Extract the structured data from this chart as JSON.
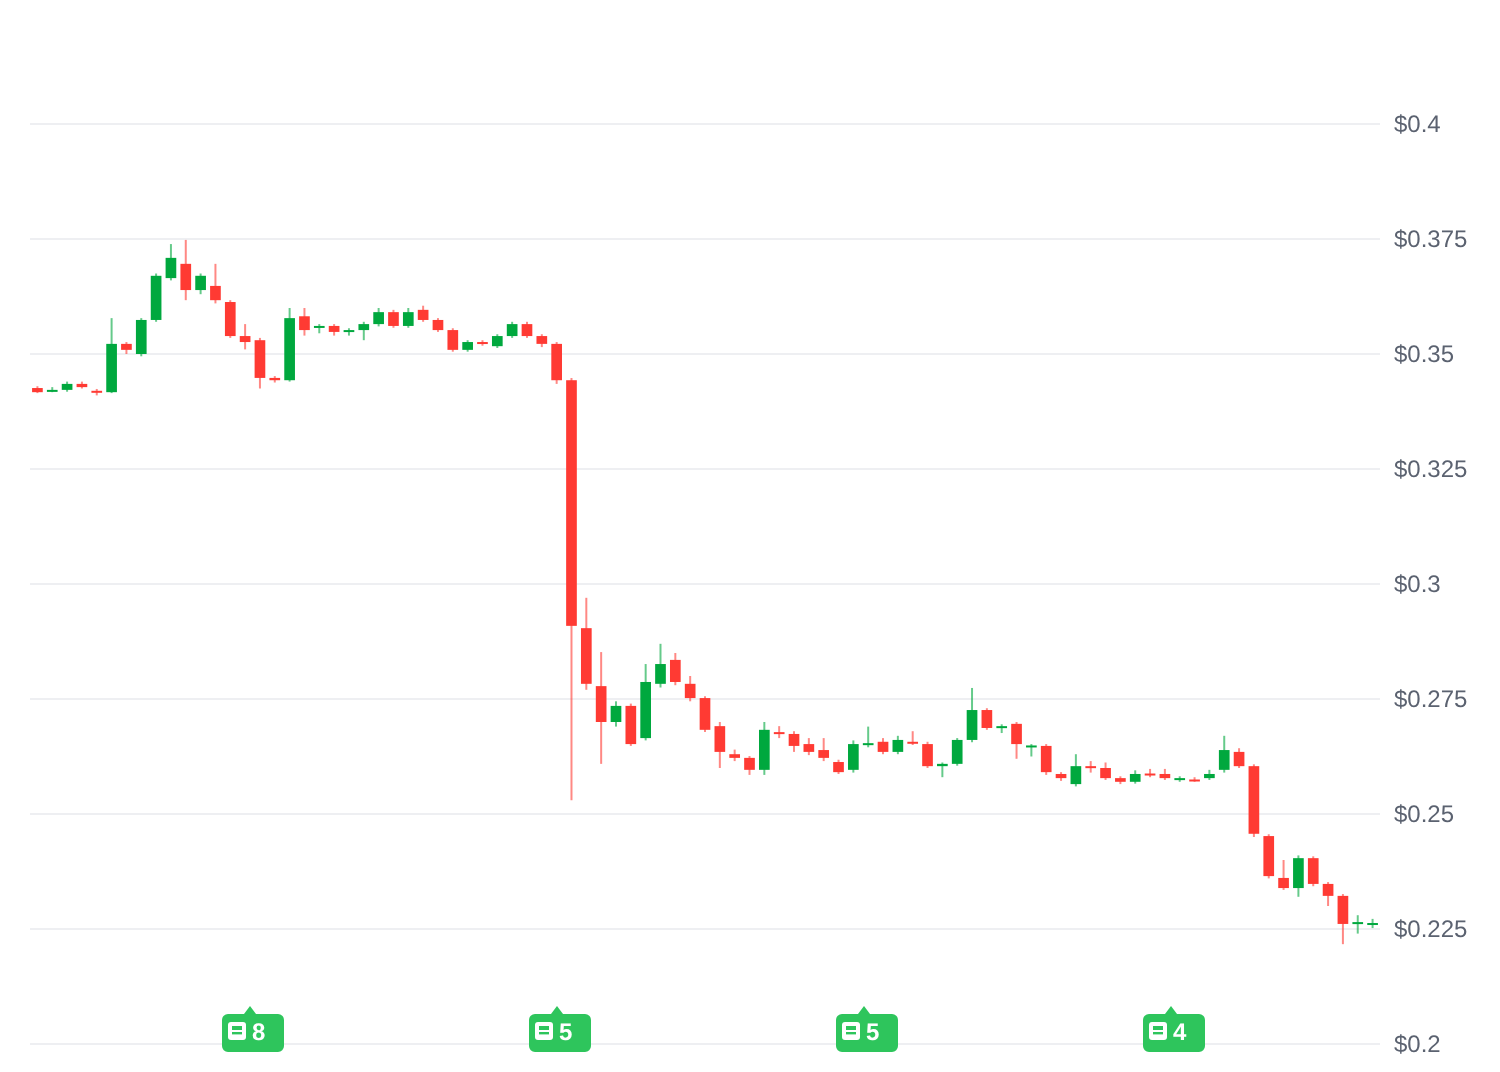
{
  "chart_data": {
    "type": "candlestick",
    "categories": [
      null,
      null,
      null,
      null,
      null,
      null,
      null,
      null,
      null,
      null,
      null,
      null,
      null,
      null,
      null,
      null,
      null,
      null,
      null,
      null,
      null,
      null,
      null,
      null,
      null,
      null,
      null,
      null,
      null,
      null,
      null,
      null,
      null,
      null,
      null,
      null,
      null,
      null,
      null,
      null,
      null,
      null,
      null,
      null,
      null,
      null,
      null,
      null,
      null,
      null,
      null,
      null,
      null,
      null,
      null,
      null,
      null,
      null,
      null,
      null,
      null,
      null,
      null,
      null,
      null,
      null,
      null,
      null,
      null,
      null,
      null,
      null,
      null,
      null,
      null,
      null,
      null,
      null,
      null,
      null,
      null,
      null,
      null,
      null,
      null,
      null,
      null,
      null,
      null,
      null,
      null
    ],
    "ohlc": [
      [
        0.3426,
        0.343,
        0.3415,
        0.3417
      ],
      [
        0.342,
        0.3428,
        0.3417,
        0.3422
      ],
      [
        0.3422,
        0.344,
        0.3418,
        0.3435
      ],
      [
        0.3435,
        0.344,
        0.3425,
        0.3428
      ],
      [
        0.342,
        0.3424,
        0.341,
        0.3417
      ],
      [
        0.3417,
        0.3578,
        0.3415,
        0.3522
      ],
      [
        0.3522,
        0.3526,
        0.35,
        0.3509
      ],
      [
        0.35,
        0.3578,
        0.3495,
        0.3574
      ],
      [
        0.3574,
        0.3675,
        0.357,
        0.367
      ],
      [
        0.3665,
        0.3739,
        0.366,
        0.3709
      ],
      [
        0.3696,
        0.3748,
        0.3617,
        0.3639
      ],
      [
        0.3639,
        0.3675,
        0.363,
        0.367
      ],
      [
        0.3648,
        0.3696,
        0.361,
        0.3617
      ],
      [
        0.3613,
        0.3617,
        0.3535,
        0.3539
      ],
      [
        0.3539,
        0.3565,
        0.351,
        0.3526
      ],
      [
        0.353,
        0.3535,
        0.3425,
        0.3448
      ],
      [
        0.3448,
        0.3452,
        0.3438,
        0.3443
      ],
      [
        0.3443,
        0.36,
        0.344,
        0.3578
      ],
      [
        0.3582,
        0.36,
        0.354,
        0.3552
      ],
      [
        0.3557,
        0.3565,
        0.3545,
        0.3561
      ],
      [
        0.3561,
        0.3565,
        0.354,
        0.3548
      ],
      [
        0.3548,
        0.3556,
        0.354,
        0.3552
      ],
      [
        0.3552,
        0.357,
        0.353,
        0.3565
      ],
      [
        0.3565,
        0.36,
        0.356,
        0.3591
      ],
      [
        0.3591,
        0.3596,
        0.3557,
        0.3561
      ],
      [
        0.3561,
        0.36,
        0.3557,
        0.3591
      ],
      [
        0.3596,
        0.3605,
        0.357,
        0.3574
      ],
      [
        0.3574,
        0.3578,
        0.3548,
        0.3552
      ],
      [
        0.3552,
        0.3556,
        0.3505,
        0.3509
      ],
      [
        0.3509,
        0.353,
        0.3505,
        0.3526
      ],
      [
        0.3526,
        0.353,
        0.3518,
        0.3522
      ],
      [
        0.3517,
        0.3543,
        0.3513,
        0.3539
      ],
      [
        0.3539,
        0.357,
        0.3535,
        0.3565
      ],
      [
        0.3565,
        0.357,
        0.3535,
        0.3539
      ],
      [
        0.3539,
        0.3543,
        0.3515,
        0.3522
      ],
      [
        0.3522,
        0.3526,
        0.3435,
        0.3443
      ],
      [
        0.3443,
        0.3448,
        0.253,
        0.2909
      ],
      [
        0.2904,
        0.297,
        0.277,
        0.2783
      ],
      [
        0.2778,
        0.2852,
        0.2609,
        0.27
      ],
      [
        0.27,
        0.2745,
        0.269,
        0.2735
      ],
      [
        0.2735,
        0.274,
        0.2648,
        0.2652
      ],
      [
        0.2665,
        0.2826,
        0.266,
        0.2787
      ],
      [
        0.2783,
        0.287,
        0.2775,
        0.2826
      ],
      [
        0.2835,
        0.285,
        0.278,
        0.2787
      ],
      [
        0.2783,
        0.28,
        0.2745,
        0.2752
      ],
      [
        0.2752,
        0.2756,
        0.2678,
        0.2683
      ],
      [
        0.2691,
        0.27,
        0.26,
        0.2635
      ],
      [
        0.263,
        0.264,
        0.2615,
        0.2622
      ],
      [
        0.2622,
        0.2626,
        0.2585,
        0.2596
      ],
      [
        0.2596,
        0.27,
        0.2585,
        0.2683
      ],
      [
        0.2678,
        0.2691,
        0.2665,
        0.2674
      ],
      [
        0.2674,
        0.268,
        0.2635,
        0.2648
      ],
      [
        0.2652,
        0.2665,
        0.2628,
        0.2635
      ],
      [
        0.2639,
        0.2665,
        0.2615,
        0.2622
      ],
      [
        0.2613,
        0.2618,
        0.2587,
        0.2591
      ],
      [
        0.2596,
        0.266,
        0.259,
        0.2652
      ],
      [
        0.265,
        0.269,
        0.2645,
        0.2654
      ],
      [
        0.2657,
        0.2665,
        0.263,
        0.2635
      ],
      [
        0.2635,
        0.267,
        0.263,
        0.2661
      ],
      [
        0.2657,
        0.268,
        0.265,
        0.2654
      ],
      [
        0.2652,
        0.2657,
        0.26,
        0.2604
      ],
      [
        0.2604,
        0.2612,
        0.258,
        0.2609
      ],
      [
        0.2609,
        0.2665,
        0.2605,
        0.2661
      ],
      [
        0.2661,
        0.2774,
        0.2656,
        0.2726
      ],
      [
        0.2726,
        0.273,
        0.2683,
        0.2687
      ],
      [
        0.2687,
        0.2695,
        0.2676,
        0.2691
      ],
      [
        0.2696,
        0.27,
        0.262,
        0.2652
      ],
      [
        0.2646,
        0.2652,
        0.2625,
        0.2649
      ],
      [
        0.2648,
        0.2652,
        0.2585,
        0.2591
      ],
      [
        0.2587,
        0.2591,
        0.2572,
        0.2578
      ],
      [
        0.2565,
        0.263,
        0.256,
        0.2604
      ],
      [
        0.2604,
        0.2615,
        0.259,
        0.26
      ],
      [
        0.26,
        0.2612,
        0.2574,
        0.2578
      ],
      [
        0.2578,
        0.2582,
        0.2565,
        0.257
      ],
      [
        0.257,
        0.2595,
        0.2566,
        0.2587
      ],
      [
        0.2588,
        0.2598,
        0.258,
        0.2586
      ],
      [
        0.2587,
        0.2598,
        0.2574,
        0.2578
      ],
      [
        0.2574,
        0.2582,
        0.257,
        0.2578
      ],
      [
        0.2575,
        0.258,
        0.257,
        0.2573
      ],
      [
        0.2578,
        0.2596,
        0.2574,
        0.2587
      ],
      [
        0.2596,
        0.267,
        0.259,
        0.2639
      ],
      [
        0.2635,
        0.2643,
        0.26,
        0.2604
      ],
      [
        0.2604,
        0.2608,
        0.245,
        0.2457
      ],
      [
        0.2452,
        0.2456,
        0.236,
        0.2365
      ],
      [
        0.2361,
        0.24,
        0.2335,
        0.2339
      ],
      [
        0.2339,
        0.241,
        0.232,
        0.2404
      ],
      [
        0.2404,
        0.2408,
        0.2343,
        0.2348
      ],
      [
        0.2348,
        0.2352,
        0.23,
        0.2322
      ],
      [
        0.2322,
        0.2326,
        0.2217,
        0.2261
      ],
      [
        0.2263,
        0.228,
        0.224,
        0.2265
      ],
      [
        0.2261,
        0.2272,
        0.2252,
        0.2263
      ]
    ],
    "colors": [
      "#ff3a33",
      "#00a83e",
      "#00a83e",
      "#ff3a33",
      "#ff3a33",
      "#00a83e",
      "#ff3a33",
      "#00a83e",
      "#00a83e",
      "#00a83e",
      "#ff3a33",
      "#00a83e",
      "#ff3a33",
      "#ff3a33",
      "#ff3a33",
      "#ff3a33",
      "#ff3a33",
      "#00a83e",
      "#ff3a33",
      "#00a83e",
      "#ff3a33",
      "#00a83e",
      "#00a83e",
      "#00a83e",
      "#ff3a33",
      "#00a83e",
      "#ff3a33",
      "#ff3a33",
      "#ff3a33",
      "#00a83e",
      "#ff3a33",
      "#00a83e",
      "#00a83e",
      "#ff3a33",
      "#ff3a33",
      "#ff3a33",
      "#ff3a33",
      "#ff3a33",
      "#ff3a33",
      "#00a83e",
      "#ff3a33",
      "#00a83e",
      "#00a83e",
      "#ff3a33",
      "#ff3a33",
      "#ff3a33",
      "#ff3a33",
      "#ff3a33",
      "#ff3a33",
      "#00a83e",
      "#ff3a33",
      "#ff3a33",
      "#ff3a33",
      "#ff3a33",
      "#ff3a33",
      "#00a83e",
      "#00a83e",
      "#ff3a33",
      "#00a83e",
      "#ff3a33",
      "#ff3a33",
      "#00a83e",
      "#00a83e",
      "#00a83e",
      "#ff3a33",
      "#00a83e",
      "#ff3a33",
      "#00a83e",
      "#ff3a33",
      "#ff3a33",
      "#00a83e",
      "#ff3a33",
      "#ff3a33",
      "#ff3a33",
      "#00a83e",
      "#ff3a33",
      "#ff3a33",
      "#00a83e",
      "#ff3a33",
      "#00a83e",
      "#00a83e",
      "#ff3a33",
      "#ff3a33",
      "#ff3a33",
      "#ff3a33",
      "#00a83e",
      "#ff3a33",
      "#ff3a33",
      "#ff3a33",
      "#00a83e",
      "#00a83e"
    ],
    "ylim": [
      0.2,
      0.4
    ],
    "yticks": [
      {
        "value": 0.2,
        "label": "$0.2"
      },
      {
        "value": 0.225,
        "label": "$0.225"
      },
      {
        "value": 0.25,
        "label": "$0.25"
      },
      {
        "value": 0.275,
        "label": "$0.275"
      },
      {
        "value": 0.3,
        "label": "$0.3"
      },
      {
        "value": 0.325,
        "label": "$0.325"
      },
      {
        "value": 0.35,
        "label": "$0.35"
      },
      {
        "value": 0.375,
        "label": "$0.375"
      },
      {
        "value": 0.4,
        "label": "$0.4"
      }
    ],
    "tick_labels": "y",
    "grid": "y",
    "annotations": [
      "8",
      "5",
      "5",
      "4"
    ]
  }
}
